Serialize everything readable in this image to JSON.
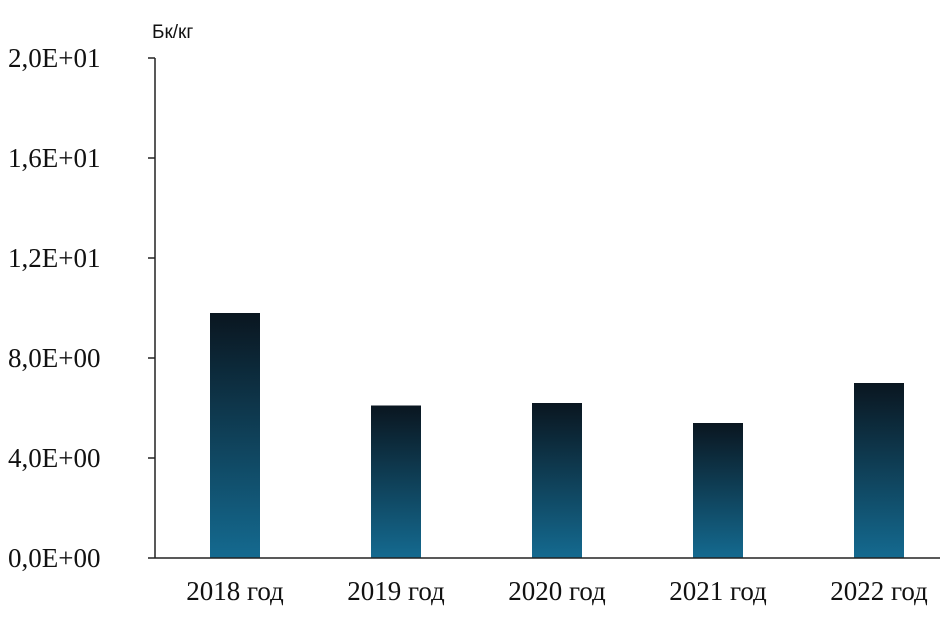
{
  "chart_data": {
    "type": "bar",
    "unit_label": "Бк/кг",
    "categories": [
      "2018 год",
      "2019 год",
      "2020 год",
      "2021 год",
      "2022 год"
    ],
    "values": [
      9.8,
      6.1,
      6.2,
      5.4,
      7.0
    ],
    "ylim": [
      0,
      20
    ],
    "y_ticks": [
      0,
      4,
      8,
      12,
      16,
      20
    ],
    "y_tick_labels": [
      "0,0E+00",
      "4,0E+00",
      "8,0E+00",
      "1,2E+01",
      "1,6E+01",
      "2,0E+01"
    ],
    "grid": false,
    "legend": "none",
    "colors": {
      "bar_top": "#0a1620",
      "bar_bottom": "#146a90",
      "axis": "#222222"
    }
  }
}
